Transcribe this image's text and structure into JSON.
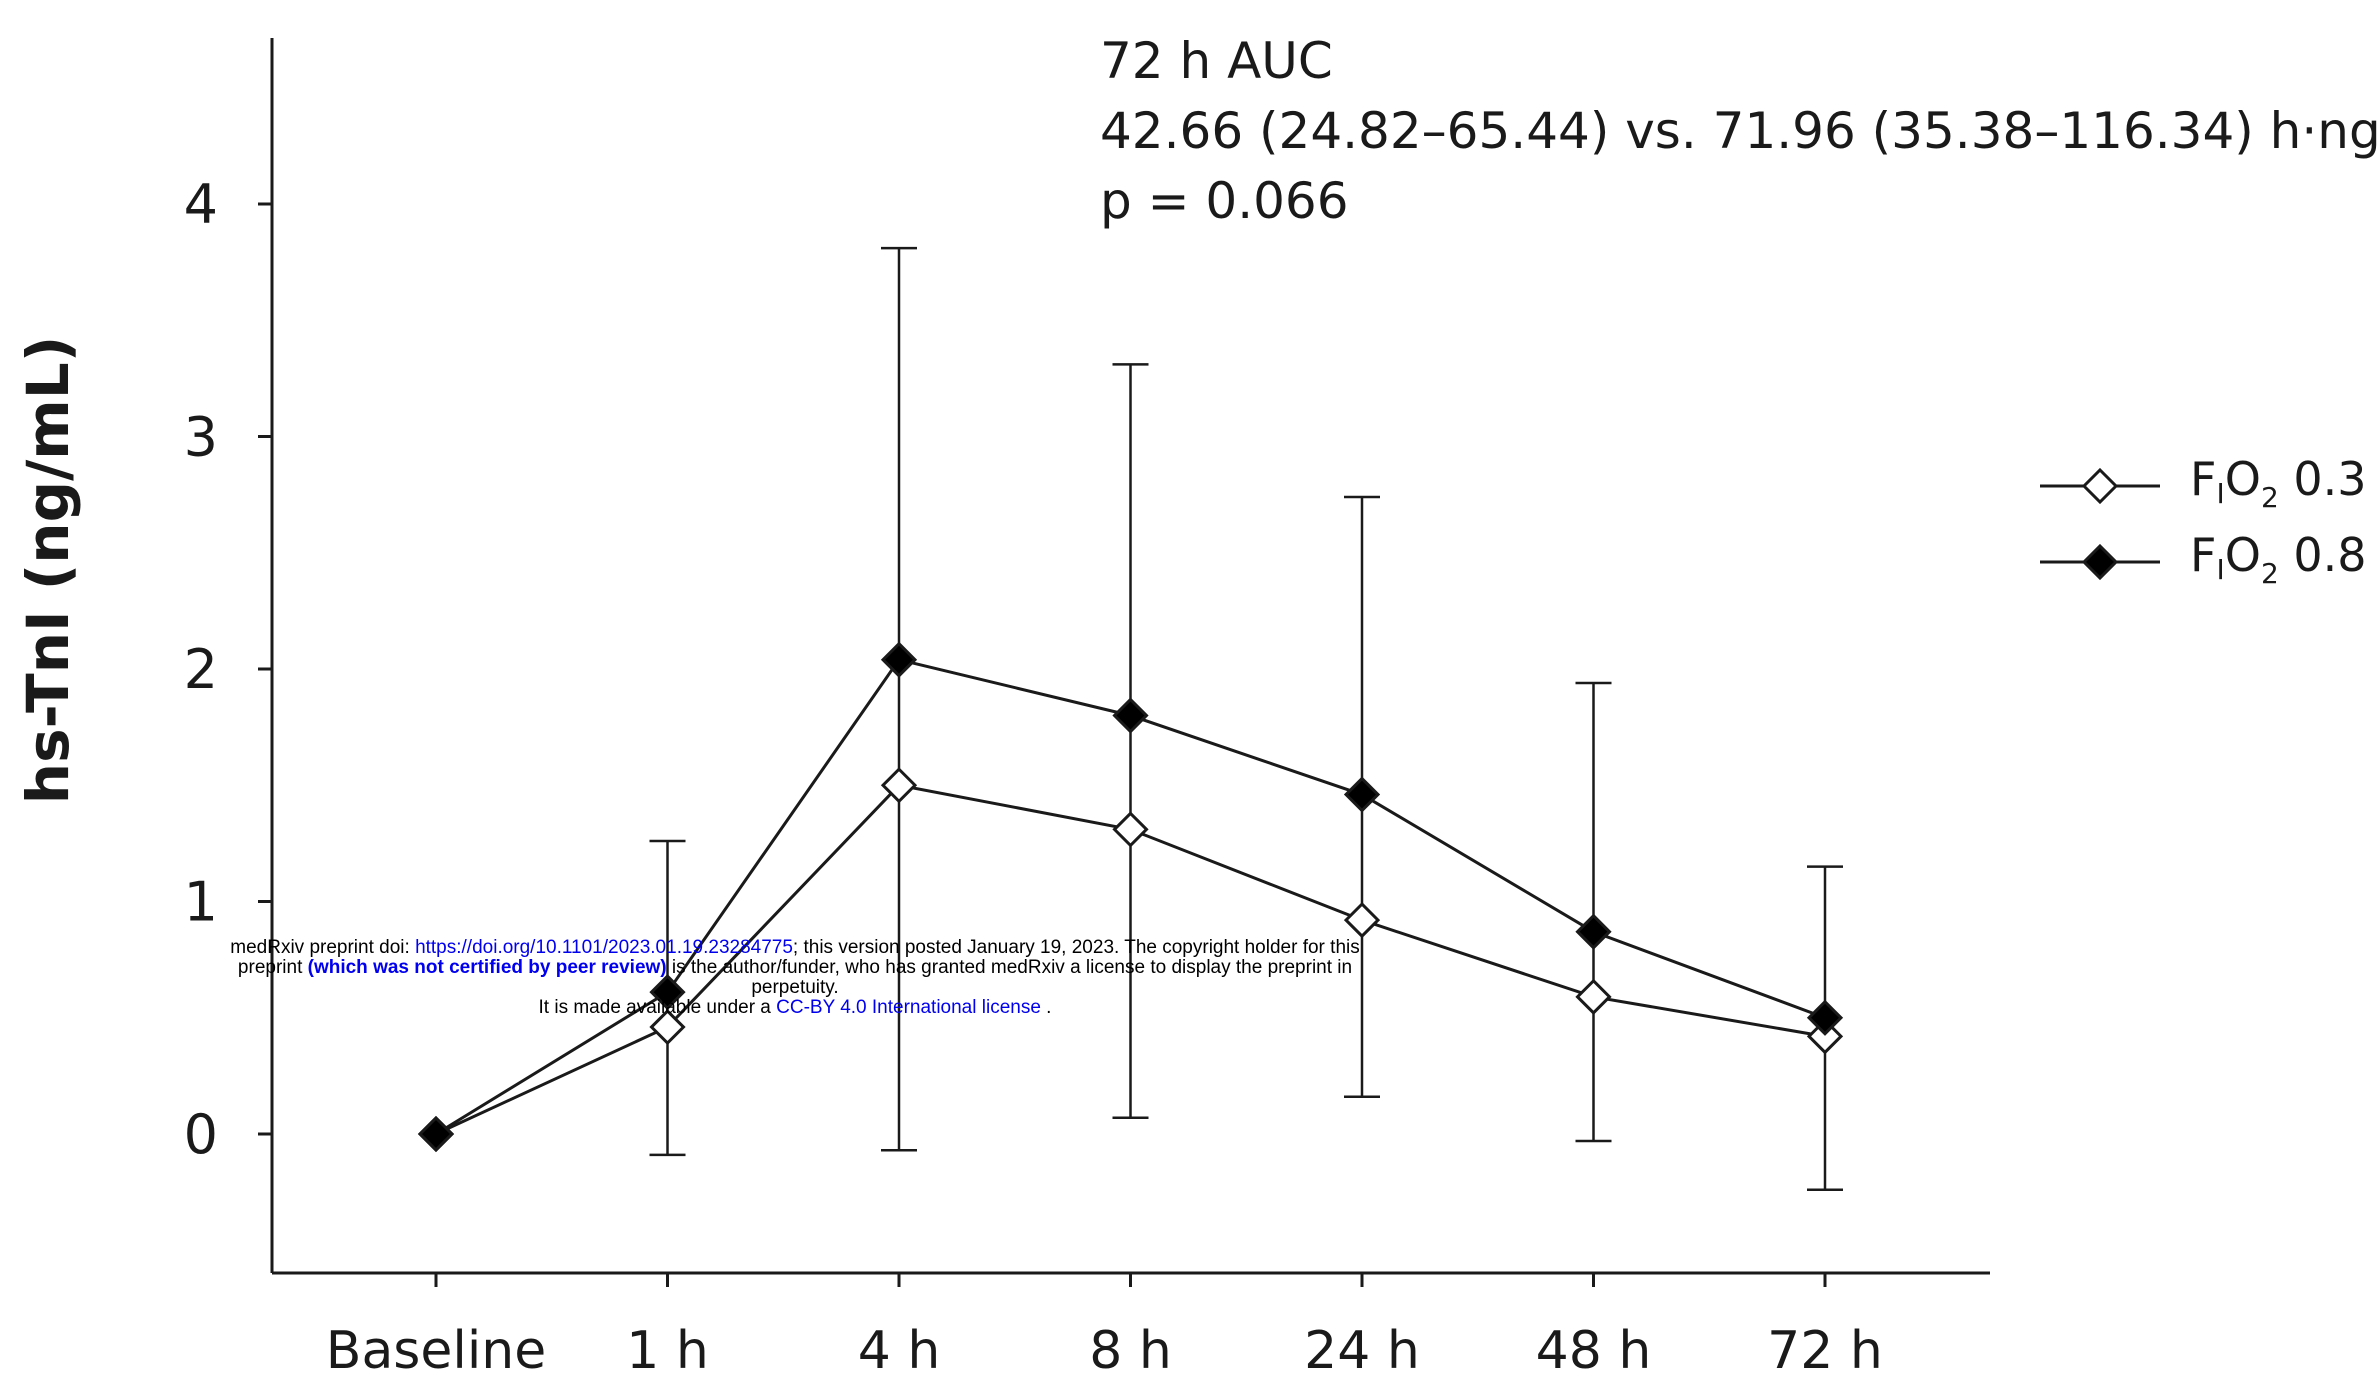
{
  "chart_data": {
    "type": "line",
    "title": "",
    "xlabel": "",
    "ylabel": "hs-TnI (ng/mL)",
    "ylim": [
      -0.6,
      4.7
    ],
    "yticks": [
      "0",
      "1",
      "2",
      "3",
      "4"
    ],
    "categories": [
      "Baseline",
      "1 h",
      "4 h",
      "8 h",
      "24 h",
      "48 h",
      "72 h"
    ],
    "series": [
      {
        "name_parts": [
          "F",
          "I",
          "O",
          "2",
          " 0.3"
        ],
        "marker": "open-diamond",
        "values": [
          0.0,
          0.46,
          1.5,
          1.31,
          0.92,
          0.59,
          0.42
        ],
        "upper": [
          0.0,
          1.26,
          3.81,
          3.31,
          2.74,
          1.94,
          1.15
        ],
        "lower": [
          0.0,
          -0.09,
          -0.07,
          0.07,
          0.16,
          -0.03,
          -0.24
        ]
      },
      {
        "name_parts": [
          "F",
          "I",
          "O",
          "2",
          " 0.8"
        ],
        "marker": "filled-diamond",
        "values": [
          0.0,
          0.61,
          2.04,
          1.8,
          1.46,
          0.87,
          0.5
        ],
        "upper": [
          0.0,
          1.26,
          3.81,
          3.31,
          2.74,
          1.94,
          1.15
        ],
        "lower": [
          0.0,
          -0.09,
          -0.07,
          0.07,
          0.16,
          -0.03,
          -0.24
        ]
      }
    ],
    "annotation": {
      "line1": "72 h AUC",
      "line2": "42.66 (24.82–65.44) vs. 71.96 (35.38–116.34) h·ng/mL",
      "line3": "p = 0.066"
    },
    "legend_position": "right",
    "colors": {
      "line": "#1a1a1a",
      "open_marker_fill": "#ffffff",
      "filled_marker_fill": "#000000"
    }
  },
  "watermark": {
    "line1_prefix": "medRxiv preprint doi: ",
    "doi_link": "https://doi.org/10.1101/2023.01.19.23284775",
    "line1_suffix": "; this version posted January 19, 2023. The copyright holder for this",
    "line2_prefix": "preprint ",
    "line2_bold": "(which was not certified by peer review)",
    "line2_suffix": " is the author/funder, who has granted medRxiv a license to display the preprint in",
    "line3": "perpetuity.",
    "line4_prefix": "It is made available under a ",
    "license_link": "CC-BY 4.0 International license",
    "line4_suffix": " .",
    "link_color": "#0000ee"
  }
}
